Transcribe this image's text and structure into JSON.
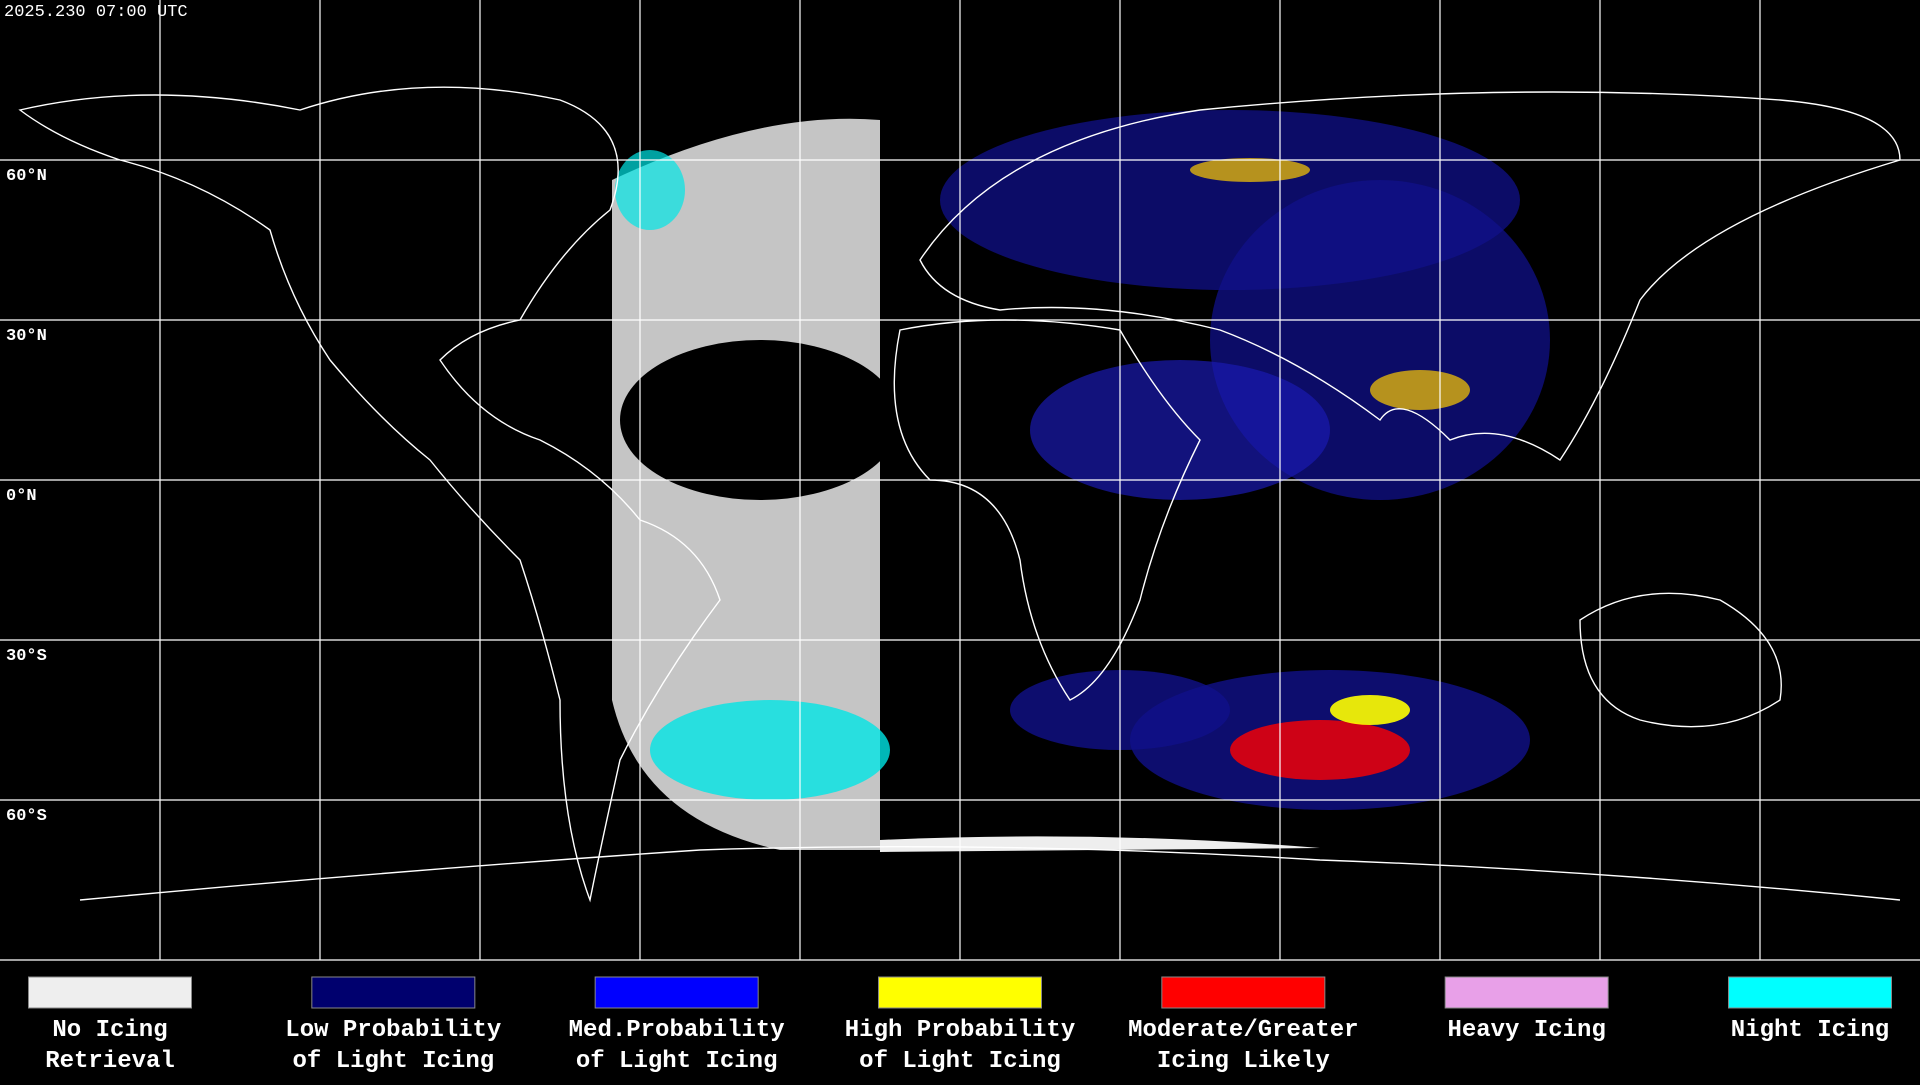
{
  "header": {
    "timestamp": "2025.230 07:00 UTC"
  },
  "map": {
    "lat_labels": [
      "60°N",
      "30°N",
      "0°N",
      "30°S",
      "60°S"
    ]
  },
  "legend": {
    "items": [
      {
        "lines": [
          "No Icing",
          "Retrieval"
        ],
        "color": "#eeeeee"
      },
      {
        "lines": [
          "Low Probability",
          "of Light Icing"
        ],
        "color": "#00006e"
      },
      {
        "lines": [
          "Med.Probability",
          "of Light Icing"
        ],
        "color": "#0000ff"
      },
      {
        "lines": [
          "High Probability",
          "of Light Icing"
        ],
        "color": "#ffff00"
      },
      {
        "lines": [
          "Moderate/Greater",
          "Icing Likely"
        ],
        "color": "#ff0000"
      },
      {
        "lines": [
          "Heavy Icing"
        ],
        "color": "#e8a0e8"
      },
      {
        "lines": [
          "Night Icing"
        ],
        "color": "#00ffff"
      }
    ]
  }
}
